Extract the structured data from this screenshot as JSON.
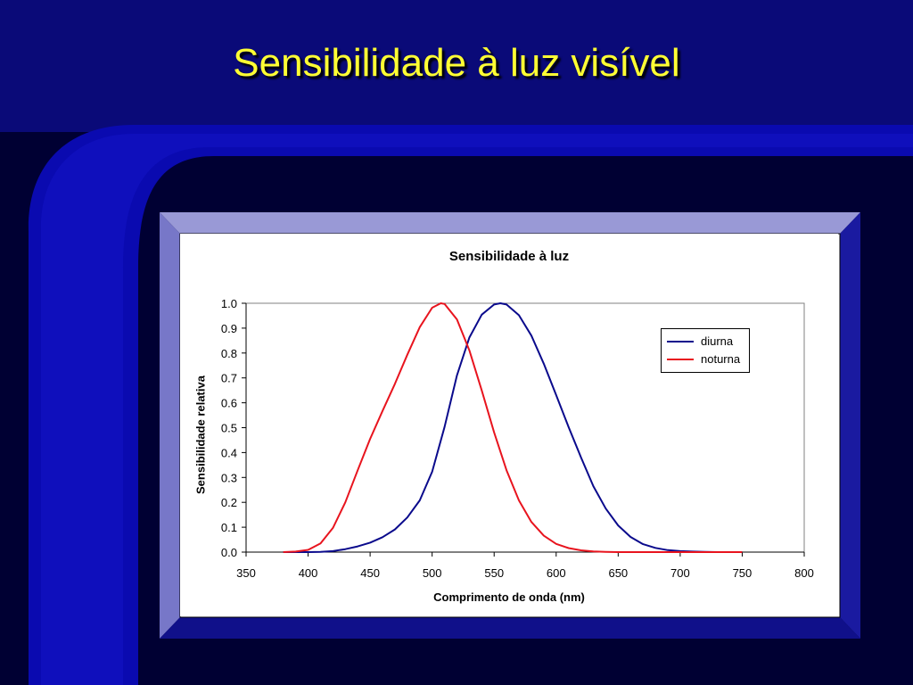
{
  "slide": {
    "title": "Sensibilidade à luz visível",
    "colors": {
      "background": "#000033",
      "title": "#ffff33",
      "accent": "#0a0aa6"
    }
  },
  "chart_data": {
    "type": "line",
    "title": "Sensibilidade à luz",
    "xlabel": "Comprimento de onda (nm)",
    "ylabel": "Sensibilidade relativa",
    "xlim": [
      350,
      800
    ],
    "ylim": [
      0.0,
      1.0
    ],
    "xticks": [
      "350",
      "400",
      "450",
      "500",
      "550",
      "600",
      "650",
      "700",
      "750",
      "800"
    ],
    "yticks": [
      "0.0",
      "0.1",
      "0.2",
      "0.3",
      "0.4",
      "0.5",
      "0.6",
      "0.7",
      "0.8",
      "0.9",
      "1.0"
    ],
    "grid": false,
    "legend_position": "top-right",
    "series": [
      {
        "name": "diurna",
        "color": "#0a0a8c",
        "x": [
          380,
          390,
          400,
          410,
          420,
          430,
          440,
          450,
          460,
          470,
          480,
          490,
          500,
          510,
          520,
          530,
          540,
          550,
          555,
          560,
          570,
          580,
          590,
          600,
          610,
          620,
          630,
          640,
          650,
          660,
          670,
          680,
          690,
          700,
          710,
          720,
          730,
          740,
          750
        ],
        "y": [
          0.0,
          0.0,
          0.0,
          0.001,
          0.004,
          0.012,
          0.023,
          0.038,
          0.06,
          0.091,
          0.139,
          0.208,
          0.323,
          0.503,
          0.71,
          0.862,
          0.954,
          0.995,
          1.0,
          0.995,
          0.952,
          0.87,
          0.757,
          0.631,
          0.503,
          0.381,
          0.265,
          0.175,
          0.107,
          0.061,
          0.032,
          0.017,
          0.008,
          0.004,
          0.002,
          0.001,
          0.0,
          0.0,
          0.0
        ]
      },
      {
        "name": "noturna",
        "color": "#e8141e",
        "x": [
          380,
          390,
          400,
          410,
          420,
          430,
          440,
          450,
          460,
          470,
          480,
          490,
          500,
          507,
          510,
          520,
          530,
          540,
          550,
          560,
          570,
          580,
          590,
          600,
          610,
          620,
          630,
          640,
          650,
          660,
          670,
          680,
          690,
          700,
          710,
          720,
          730,
          740,
          750
        ],
        "y": [
          0.0,
          0.002,
          0.009,
          0.035,
          0.097,
          0.2,
          0.329,
          0.455,
          0.567,
          0.676,
          0.793,
          0.904,
          0.982,
          1.0,
          0.997,
          0.935,
          0.811,
          0.65,
          0.481,
          0.329,
          0.208,
          0.121,
          0.066,
          0.033,
          0.016,
          0.007,
          0.003,
          0.001,
          0.0,
          0.0,
          0.0,
          0.0,
          0.0,
          0.0,
          0.0,
          0.0,
          0.0,
          0.0,
          0.0
        ]
      }
    ]
  }
}
